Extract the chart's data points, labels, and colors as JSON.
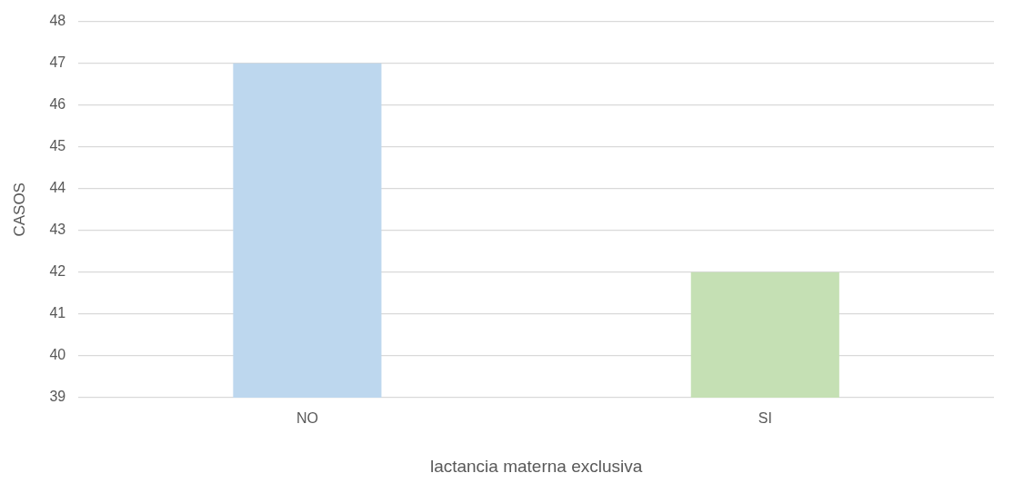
{
  "chart_data": {
    "type": "bar",
    "xlabel": "lactancia materna exclusiva",
    "ylabel": "CASOS",
    "categories": [
      "NO",
      "SI"
    ],
    "values": [
      47,
      42
    ],
    "colors": [
      "#bdd7ee",
      "#c5e0b4"
    ],
    "ylim": [
      39,
      48
    ],
    "yticks": [
      39,
      40,
      41,
      42,
      43,
      44,
      45,
      46,
      47,
      48
    ],
    "grid": "y",
    "legend": false
  }
}
